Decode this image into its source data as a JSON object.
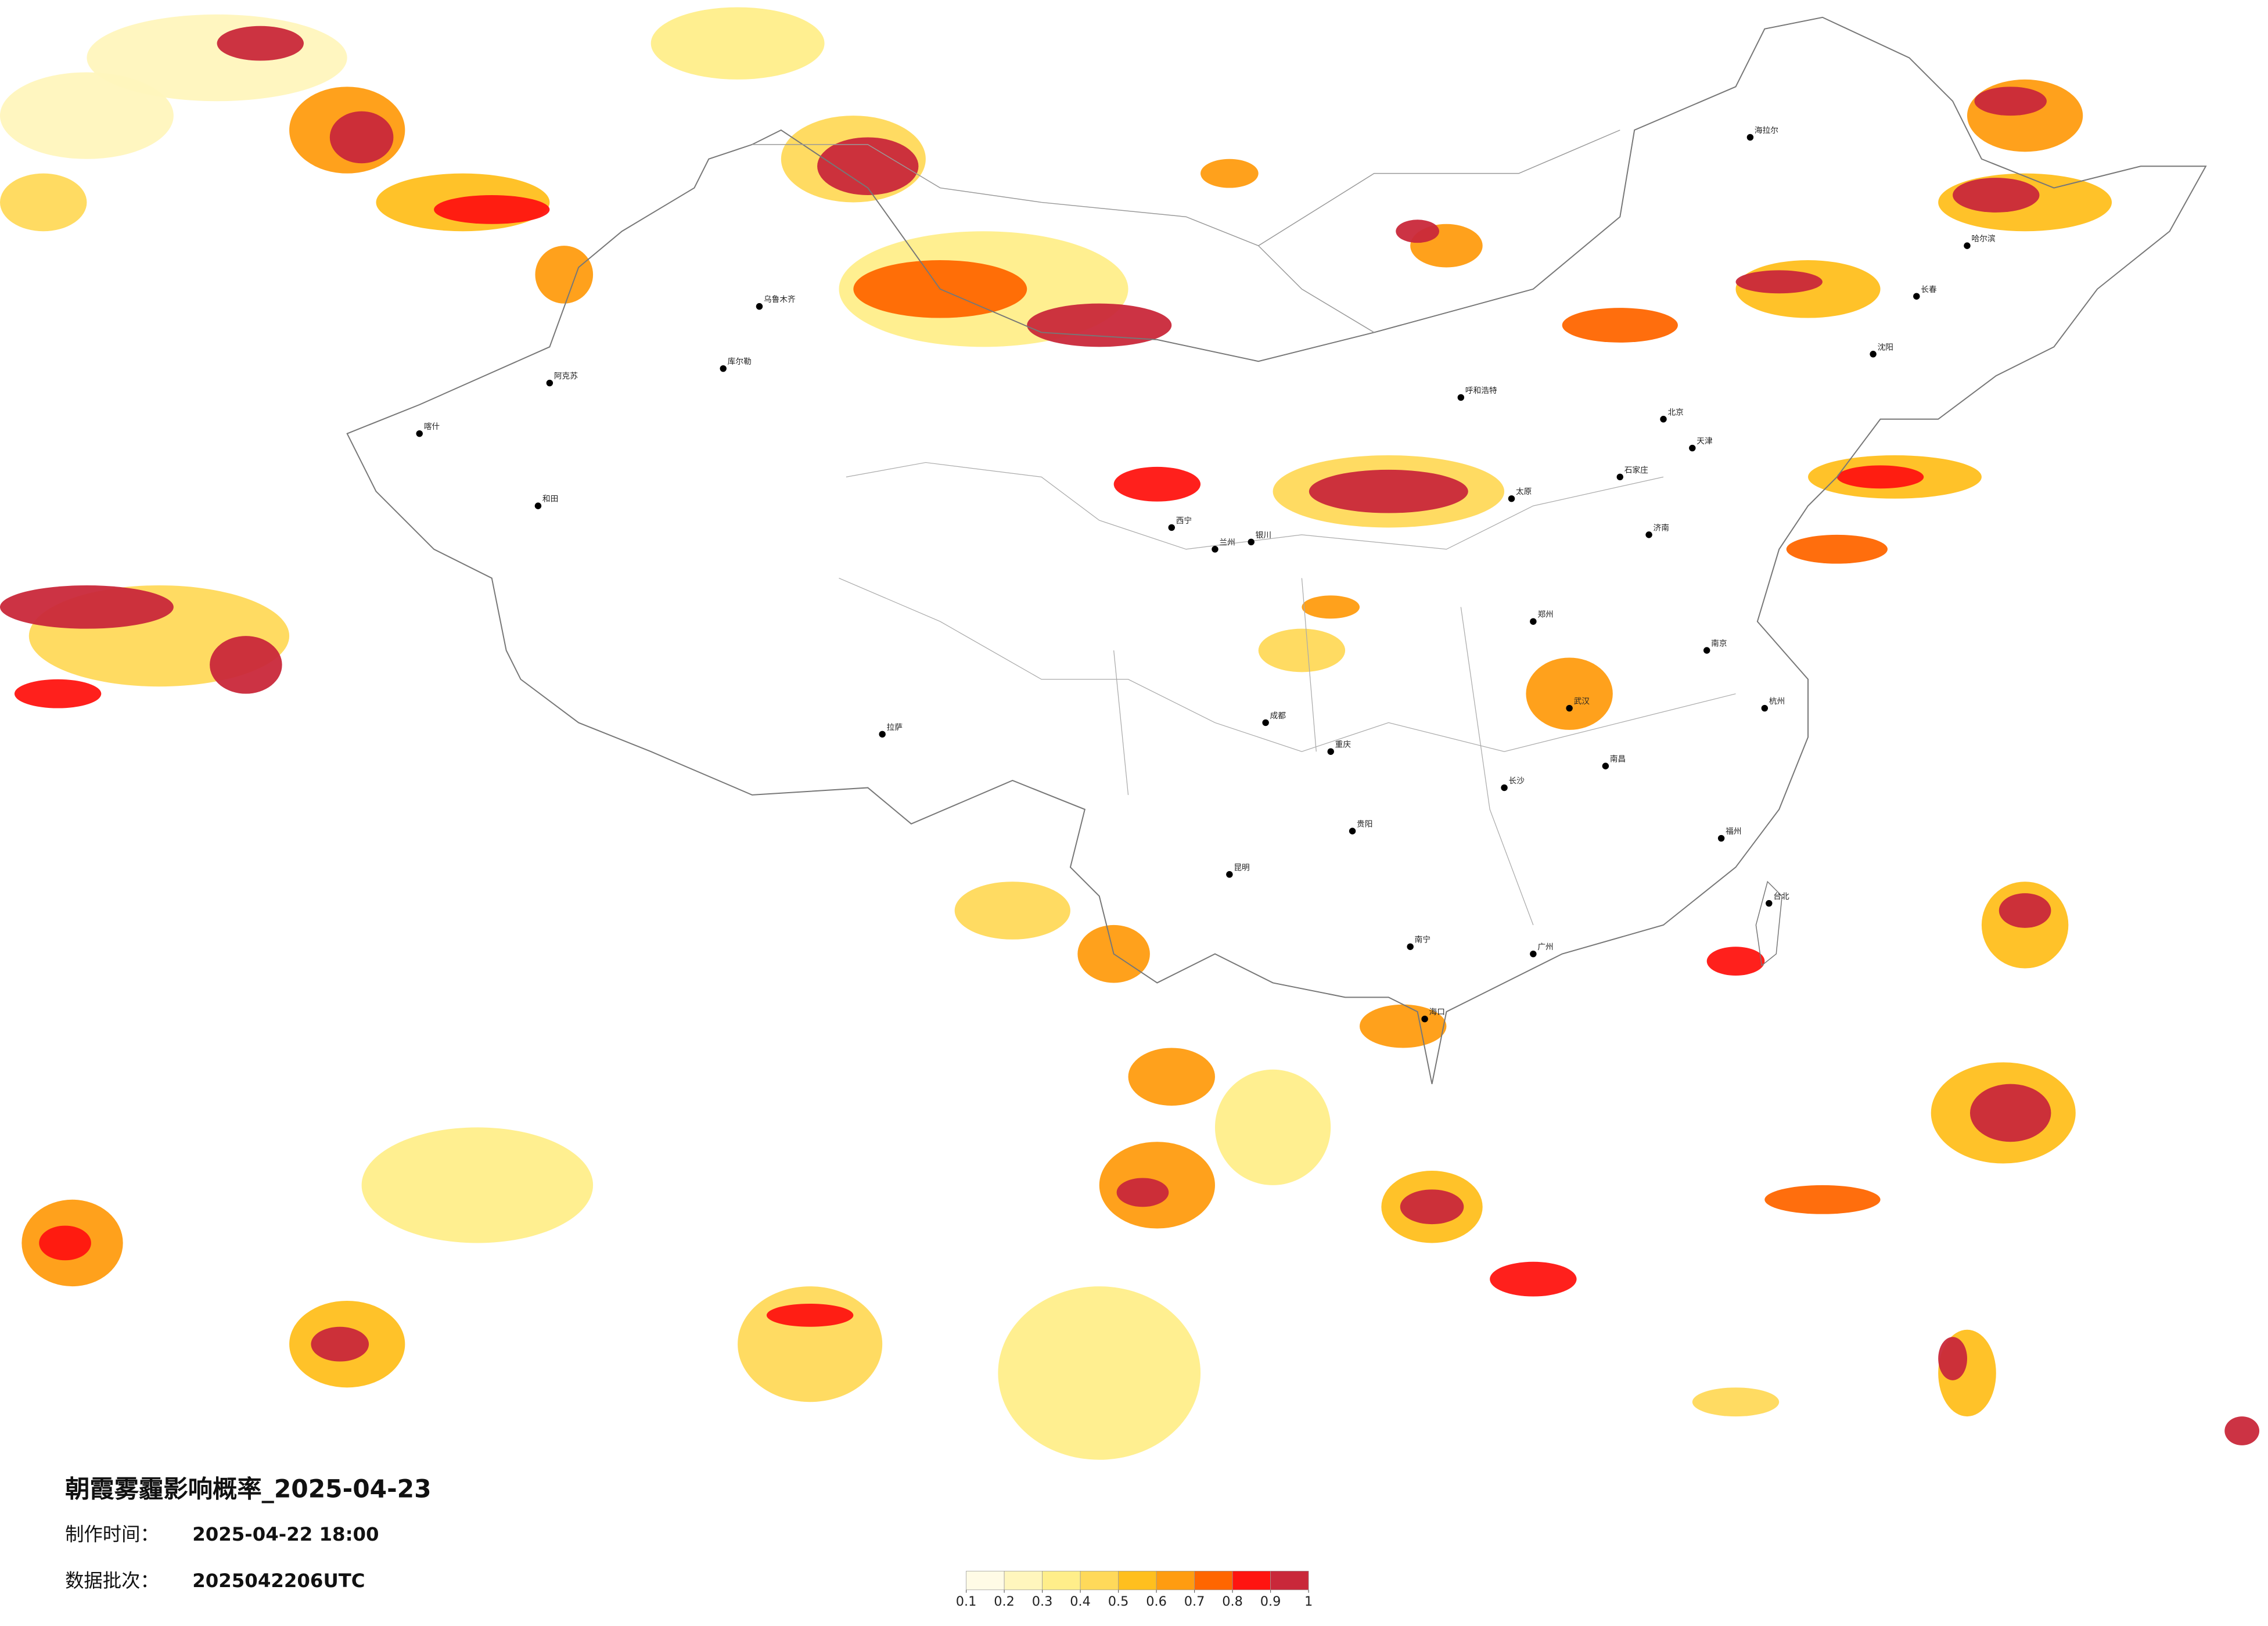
{
  "title": "朝霞雾霾影响概率_2025-04-23",
  "made_label": "制作时间：",
  "made_time": "2025-04-22 18:00",
  "batch_label": "数据批次：",
  "batch": "2025042206UTC",
  "legend": {
    "ticks": [
      0.1,
      0.2,
      0.3,
      0.4,
      0.5,
      0.6,
      0.7,
      0.8,
      0.9,
      1
    ],
    "colors": [
      "#fffbe6",
      "#fff6bd",
      "#ffee8a",
      "#ffd95a",
      "#ffbf1e",
      "#ff9c10",
      "#ff6600",
      "#ff1410",
      "#c9283a"
    ]
  },
  "cities": [
    "海拉尔",
    "哈尔滨",
    "长春",
    "沈阳",
    "北京",
    "天津",
    "石家庄",
    "太原",
    "呼和浩特",
    "银川",
    "兰州",
    "西宁",
    "乌鲁木齐",
    "喀什",
    "拉萨",
    "成都",
    "重庆",
    "贵阳",
    "昆明",
    "南宁",
    "广州",
    "武汉",
    "长沙",
    "南昌",
    "郑州",
    "济南",
    "南京",
    "杭州",
    "福州",
    "台北",
    "海口",
    "和田",
    "阿克苏",
    "库尔勒"
  ]
}
